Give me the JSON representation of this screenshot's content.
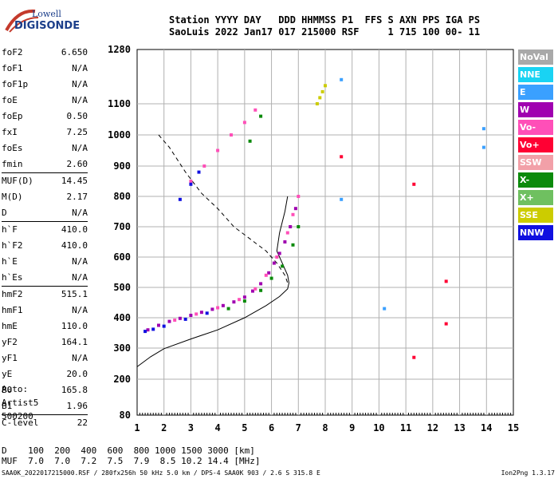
{
  "logo": {
    "line1": "Lowell",
    "line2": "DIGISONDE"
  },
  "header": {
    "row1": "Station YYYY DAY   DDD HHMMSS P1  FFS S AXN PPS IGA PS",
    "row2": "SaoLuis 2022 Jan17 017 215000 RSF     1 715 100 00- 11"
  },
  "params_group1": [
    {
      "label": "foF2",
      "value": "6.650"
    },
    {
      "label": "foF1",
      "value": "N/A"
    },
    {
      "label": "foF1p",
      "value": "N/A"
    },
    {
      "label": "foE",
      "value": "N/A"
    },
    {
      "label": "foEp",
      "value": "0.50"
    },
    {
      "label": "fxI",
      "value": "7.25"
    },
    {
      "label": "foEs",
      "value": "N/A"
    },
    {
      "label": "fmin",
      "value": "2.60"
    }
  ],
  "params_group2": [
    {
      "label": "MUF(D)",
      "value": "14.45"
    },
    {
      "label": "M(D)",
      "value": "2.17"
    },
    {
      "label": "D",
      "value": "N/A"
    }
  ],
  "params_group3": [
    {
      "label": "h`F",
      "value": "410.0"
    },
    {
      "label": "h`F2",
      "value": "410.0"
    },
    {
      "label": "h`E",
      "value": "N/A"
    },
    {
      "label": "h`Es",
      "value": "N/A"
    }
  ],
  "params_group4": [
    {
      "label": "hmF2",
      "value": "515.1"
    },
    {
      "label": "hmF1",
      "value": "N/A"
    },
    {
      "label": "hmE",
      "value": "110.0"
    },
    {
      "label": "yF2",
      "value": "164.1"
    },
    {
      "label": "yF1",
      "value": "N/A"
    },
    {
      "label": "yE",
      "value": "20.0"
    },
    {
      "label": "B0",
      "value": "165.8"
    },
    {
      "label": "B1",
      "value": "1.96"
    }
  ],
  "params_group5": [
    {
      "label": "C-level",
      "value": "22"
    }
  ],
  "auto": {
    "line1": "Auto:",
    "line2": "Artist5",
    "line3": "500200"
  },
  "legend": [
    {
      "label": "NoVal",
      "color": "#a9a9a9"
    },
    {
      "label": "NNE",
      "color": "#19d3f3"
    },
    {
      "label": "E",
      "color": "#3aa0ff"
    },
    {
      "label": "W",
      "color": "#a000b0"
    },
    {
      "label": "Vo-",
      "color": "#ff4fb8"
    },
    {
      "label": "Vo+",
      "color": "#ff0033"
    },
    {
      "label": "SSW",
      "color": "#f2a0a8"
    },
    {
      "label": "X-",
      "color": "#0b8a0b"
    },
    {
      "label": "X+",
      "color": "#6fc060"
    },
    {
      "label": "SSE",
      "color": "#cccc00"
    },
    {
      "label": "NNW",
      "color": "#1010e0"
    }
  ],
  "muf_table": {
    "row1": "D    100  200  400  600  800 1000 1500 3000 [km]",
    "row2": "MUF  7.0  7.0  7.2  7.5  7.9  8.5 10.2 14.4 [MHz]"
  },
  "footer": "SAA0K_2022017215000.RSF / 280fx256h 50 kHz 5.0 km / DPS-4 SAA0K 903 / 2.6 S 315.8 E",
  "version": "Ion2Png 1.3.17",
  "chart_data": {
    "type": "scatter",
    "xlim": [
      1,
      15
    ],
    "ylim": [
      80,
      1280
    ],
    "x_ticks": [
      1,
      2,
      3,
      4,
      5,
      6,
      7,
      8,
      9,
      10,
      11,
      12,
      13,
      14,
      15
    ],
    "y_ticks": [
      80,
      200,
      300,
      400,
      500,
      600,
      700,
      800,
      900,
      1000,
      1100,
      1280
    ],
    "grid": true,
    "series": [
      {
        "color": "#a000b0",
        "points": [
          [
            1.4,
            360
          ],
          [
            1.8,
            375
          ],
          [
            2.2,
            388
          ],
          [
            2.6,
            398
          ],
          [
            3.0,
            408
          ],
          [
            3.4,
            418
          ],
          [
            3.8,
            428
          ],
          [
            4.2,
            440
          ],
          [
            4.6,
            452
          ],
          [
            5.0,
            468
          ],
          [
            5.3,
            488
          ],
          [
            5.6,
            512
          ],
          [
            5.9,
            548
          ],
          [
            6.1,
            580
          ],
          [
            6.3,
            612
          ],
          [
            6.5,
            650
          ],
          [
            6.7,
            700
          ],
          [
            6.9,
            760
          ]
        ]
      },
      {
        "color": "#ff4fb8",
        "points": [
          [
            2.4,
            392
          ],
          [
            3.2,
            412
          ],
          [
            4.0,
            433
          ],
          [
            4.8,
            460
          ],
          [
            5.4,
            495
          ],
          [
            5.8,
            540
          ],
          [
            6.2,
            600
          ],
          [
            6.6,
            680
          ],
          [
            6.8,
            740
          ],
          [
            7.0,
            800
          ],
          [
            3.0,
            850
          ],
          [
            3.5,
            900
          ],
          [
            4.0,
            950
          ],
          [
            4.5,
            1000
          ],
          [
            5.0,
            1040
          ],
          [
            5.4,
            1080
          ]
        ]
      },
      {
        "color": "#0b8a0b",
        "points": [
          [
            4.4,
            430
          ],
          [
            5.0,
            455
          ],
          [
            5.6,
            490
          ],
          [
            6.0,
            530
          ],
          [
            6.4,
            570
          ],
          [
            6.8,
            640
          ],
          [
            7.0,
            700
          ],
          [
            5.2,
            980
          ],
          [
            5.6,
            1060
          ]
        ]
      },
      {
        "color": "#1010e0",
        "points": [
          [
            1.3,
            355
          ],
          [
            1.6,
            362
          ],
          [
            2.0,
            372
          ],
          [
            2.8,
            395
          ],
          [
            3.6,
            415
          ],
          [
            2.6,
            790
          ],
          [
            3.0,
            840
          ],
          [
            3.3,
            880
          ]
        ]
      },
      {
        "color": "#cccc00",
        "points": [
          [
            7.8,
            1120
          ],
          [
            7.9,
            1140
          ],
          [
            7.7,
            1100
          ],
          [
            8.0,
            1160
          ]
        ]
      },
      {
        "color": "#3aa0ff",
        "points": [
          [
            8.6,
            1180
          ],
          [
            8.6,
            790
          ],
          [
            10.2,
            430
          ],
          [
            13.9,
            1020
          ],
          [
            13.9,
            960
          ]
        ]
      },
      {
        "color": "#ff0033",
        "points": [
          [
            11.3,
            840
          ],
          [
            12.5,
            380
          ],
          [
            11.3,
            270
          ],
          [
            12.5,
            520
          ],
          [
            8.6,
            930
          ]
        ]
      }
    ],
    "profile_solid": [
      [
        1,
        240
      ],
      [
        1.5,
        272
      ],
      [
        2,
        298
      ],
      [
        3,
        330
      ],
      [
        4,
        360
      ],
      [
        5,
        400
      ],
      [
        5.8,
        440
      ],
      [
        6.3,
        470
      ],
      [
        6.6,
        495
      ],
      [
        6.65,
        515
      ],
      [
        6.6,
        540
      ],
      [
        6.4,
        580
      ],
      [
        6.2,
        620
      ],
      [
        6.3,
        680
      ],
      [
        6.5,
        750
      ],
      [
        6.6,
        800
      ]
    ],
    "profile_dashed": [
      [
        1.8,
        1000
      ],
      [
        2.2,
        960
      ],
      [
        2.8,
        880
      ],
      [
        3.4,
        810
      ],
      [
        4.0,
        760
      ],
      [
        4.6,
        700
      ],
      [
        5.2,
        660
      ],
      [
        5.8,
        620
      ],
      [
        6.2,
        580
      ],
      [
        6.5,
        540
      ],
      [
        6.6,
        515
      ]
    ]
  }
}
